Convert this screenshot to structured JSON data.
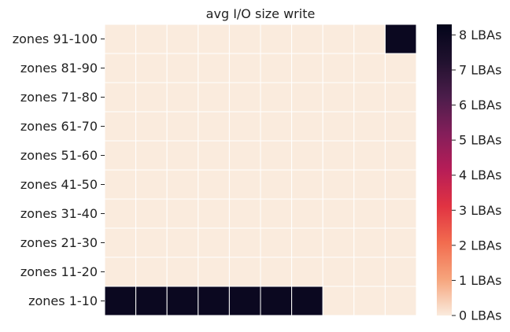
{
  "chart_data": {
    "type": "heatmap",
    "title": "avg I/O size write",
    "xlabel": "",
    "ylabel": "",
    "y_categories": [
      "zones 91-100",
      "zones 81-90",
      "zones 71-80",
      "zones 61-70",
      "zones 51-60",
      "zones 41-50",
      "zones 31-40",
      "zones 21-30",
      "zones 11-20",
      "zones 1-10"
    ],
    "columns": 10,
    "values": [
      [
        0,
        0,
        0,
        0,
        0,
        0,
        0,
        0,
        0,
        8
      ],
      [
        0,
        0,
        0,
        0,
        0,
        0,
        0,
        0,
        0,
        0
      ],
      [
        0,
        0,
        0,
        0,
        0,
        0,
        0,
        0,
        0,
        0
      ],
      [
        0,
        0,
        0,
        0,
        0,
        0,
        0,
        0,
        0,
        0
      ],
      [
        0,
        0,
        0,
        0,
        0,
        0,
        0,
        0,
        0,
        0
      ],
      [
        0,
        0,
        0,
        0,
        0,
        0,
        0,
        0,
        0,
        0
      ],
      [
        0,
        0,
        0,
        0,
        0,
        0,
        0,
        0,
        0,
        0
      ],
      [
        0,
        0,
        0,
        0,
        0,
        0,
        0,
        0,
        0,
        0
      ],
      [
        0,
        0,
        0,
        0,
        0,
        0,
        0,
        0,
        0,
        0
      ],
      [
        8,
        8,
        8,
        8,
        8,
        8,
        8,
        0,
        0,
        0
      ]
    ],
    "colorbar": {
      "ticks": [
        "0 LBAs",
        "1 LBAs",
        "2 LBAs",
        "3 LBAs",
        "4 LBAs",
        "5 LBAs",
        "6 LBAs",
        "7 LBAs",
        "8 LBAs"
      ],
      "tick_values": [
        0,
        1,
        2,
        3,
        4,
        5,
        6,
        7,
        8
      ],
      "range": [
        0,
        8.3
      ]
    },
    "colormap": [
      "#faebdd",
      "#f6a47c",
      "#f26c4f",
      "#e13342",
      "#b71d57",
      "#841e5a",
      "#4c1d4b",
      "#20112e",
      "#03051a"
    ]
  }
}
